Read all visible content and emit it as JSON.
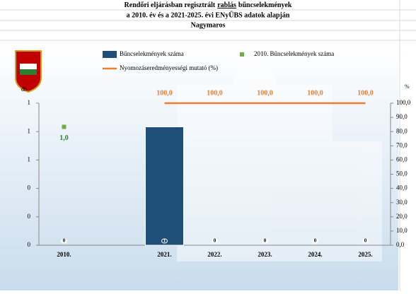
{
  "chart_data": {
    "type": "combo",
    "title": [
      "Rendőri eljárásban regisztrált",
      "rablás",
      "bűncselekmények"
    ],
    "subtitle": "a 2010. év és a 2021-2025. évi ENyÜBS adatok alapján",
    "location": "Nagymaros",
    "y_label": "db",
    "y2_label": "%",
    "categories": [
      "2010.",
      null,
      "2021.",
      "2022.",
      "2023.",
      "2024.",
      "2025."
    ],
    "ylim": [
      0,
      1.2
    ],
    "yticks": [
      {
        "value": 0,
        "label": "0"
      },
      {
        "value": 0.24,
        "label": "0"
      },
      {
        "value": 0.48,
        "label": "0"
      },
      {
        "value": 0.72,
        "label": "1"
      },
      {
        "value": 0.96,
        "label": "1"
      },
      {
        "value": 1.2,
        "label": "1"
      }
    ],
    "y2lim": [
      0,
      100
    ],
    "y2ticks": [
      {
        "value": 0,
        "label": "0,0"
      },
      {
        "value": 10,
        "label": "10,0"
      },
      {
        "value": 20,
        "label": "20,0"
      },
      {
        "value": 30,
        "label": "30,0"
      },
      {
        "value": 40,
        "label": "40,0"
      },
      {
        "value": 50,
        "label": "50,0"
      },
      {
        "value": 60,
        "label": "60,0"
      },
      {
        "value": 70,
        "label": "70,0"
      },
      {
        "value": 80,
        "label": "80,0"
      },
      {
        "value": 90,
        "label": "90,0"
      },
      {
        "value": 100,
        "label": "100,0"
      }
    ],
    "series": [
      {
        "name": "Bűncselekmények száma",
        "type": "bar",
        "color": "#1f4e79",
        "values": [
          0,
          null,
          1,
          0,
          0,
          0,
          0
        ]
      },
      {
        "name": "2010. Bűncselekmények száma",
        "type": "point",
        "color": "#70ad47",
        "values": [
          1,
          null,
          null,
          null,
          null,
          null,
          null
        ],
        "value_labels": [
          "1,0",
          null,
          null,
          null,
          null,
          null,
          null
        ]
      },
      {
        "name": "Nyomozáseredményességi mutató (%)",
        "type": "line",
        "axis": "y2",
        "color": "#ed7d31",
        "values": [
          null,
          null,
          100,
          100,
          100,
          100,
          100
        ],
        "value_labels": [
          null,
          null,
          "100,0",
          "100,0",
          "100,0",
          "100,0",
          "100,0"
        ]
      }
    ]
  }
}
